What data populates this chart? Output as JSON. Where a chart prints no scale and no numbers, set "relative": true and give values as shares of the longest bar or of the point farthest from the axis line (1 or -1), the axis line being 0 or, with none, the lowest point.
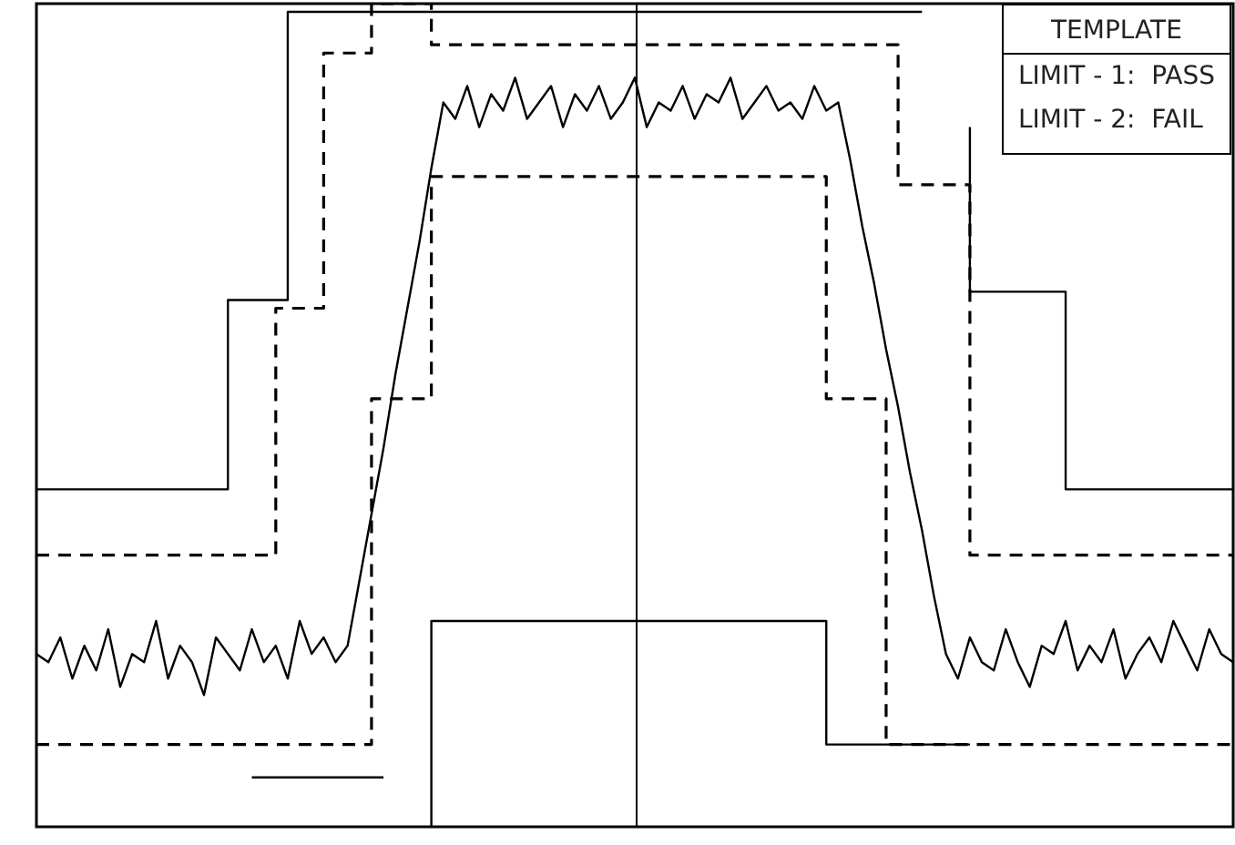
{
  "chart_data": {
    "type": "line",
    "relative": true,
    "grid": false,
    "legend": false,
    "marker": "none",
    "annotations": [
      "TEMPLATE",
      "LIMIT - 1:  PASS",
      "LIMIT - 2:  FAIL"
    ],
    "categories": [
      null,
      null,
      null,
      null,
      null,
      null,
      null,
      null,
      null,
      null,
      null,
      null,
      null,
      null,
      null,
      null,
      null,
      null,
      null,
      null,
      null,
      null,
      null,
      null,
      null,
      null,
      null,
      null,
      null,
      null,
      null,
      null,
      null,
      null,
      null,
      null,
      null,
      null,
      null,
      null,
      null,
      null,
      null,
      null,
      null,
      null,
      null,
      null,
      null,
      null,
      null,
      null,
      null,
      null,
      null,
      null,
      null,
      null,
      null,
      null,
      null,
      null,
      null,
      null,
      null,
      null,
      null,
      null,
      null,
      null,
      null,
      null,
      null,
      null,
      null,
      null,
      null,
      null,
      null,
      null,
      null,
      null,
      null,
      null,
      null,
      null,
      null,
      null,
      null,
      null,
      null,
      null,
      null,
      null,
      null,
      null,
      null,
      null,
      null,
      null,
      null
    ],
    "series": [
      {
        "type": "step",
        "color": "#000000",
        "line_style": "solid",
        "values": [
          0.41,
          0.41,
          0.41,
          0.41,
          0.41,
          0.41,
          0.41,
          0.41,
          0.41,
          0.41,
          0.41,
          0.41,
          0.41,
          0.41,
          0.41,
          0.41,
          0.41,
          0.64,
          0.64,
          0.64,
          0.64,
          0.64,
          0.99,
          0.99,
          0.99,
          0.99,
          0.99,
          0.99,
          0.99,
          0.99,
          0.99,
          0.99,
          0.99,
          0.99,
          0.99,
          0.99,
          0.99,
          0.99,
          0.99,
          0.99,
          0.99,
          0.99,
          0.99,
          0.99,
          0.99,
          0.99,
          0.99,
          0.99,
          0.99,
          0.99,
          0.99,
          0.99,
          0.99,
          0.99,
          0.99,
          0.99,
          0.99,
          0.99,
          0.99,
          0.99,
          0.99,
          0.99,
          0.99,
          0.99,
          0.99,
          0.99,
          0.99,
          0.99,
          0.99,
          0.99,
          0.99,
          0.99,
          0.99,
          0.99,
          0.99,
          null,
          null,
          null,
          0.85,
          0.65,
          0.65,
          0.65,
          0.65,
          0.65,
          0.65,
          0.65,
          0.65,
          0.41,
          0.41,
          0.41,
          0.41,
          0.41,
          0.41,
          0.41,
          0.41,
          0.41,
          0.41,
          0.41,
          0.41,
          0.41,
          0.41
        ]
      },
      {
        "type": "step",
        "color": "#000000",
        "line_style": "solid",
        "values": [
          null,
          null,
          null,
          null,
          null,
          null,
          null,
          null,
          null,
          null,
          null,
          null,
          null,
          null,
          null,
          null,
          null,
          null,
          0.06,
          0.06,
          0.06,
          0.06,
          0.06,
          0.06,
          0.06,
          0.06,
          0.06,
          0.06,
          0.06,
          0.06,
          null,
          null,
          null,
          0,
          0.25,
          0.25,
          0.25,
          0.25,
          0.25,
          0.25,
          0.25,
          0.25,
          0.25,
          0.25,
          0.25,
          0.25,
          0.25,
          0.25,
          0.25,
          0.25,
          0.25,
          0.25,
          0.25,
          0.25,
          0.25,
          0.25,
          0.25,
          0.25,
          0.25,
          0.25,
          0.25,
          0.25,
          0.25,
          0.25,
          0.25,
          0.25,
          0.25,
          0.1,
          0.1,
          0.1,
          0.1,
          0.1,
          0.1,
          0.1,
          0.1,
          0.1,
          0.1,
          0.1,
          0.1,
          null,
          null,
          null,
          null,
          null,
          null,
          null,
          null,
          null,
          null,
          null,
          null,
          null,
          null,
          null,
          null,
          null,
          null,
          null,
          null,
          null,
          null
        ]
      },
      {
        "type": "step",
        "color": "#000000",
        "line_style": "dashed",
        "values": [
          0.33,
          0.33,
          0.33,
          0.33,
          0.33,
          0.33,
          0.33,
          0.33,
          0.33,
          0.33,
          0.33,
          0.33,
          0.33,
          0.33,
          0.33,
          0.33,
          0.33,
          0.33,
          0.33,
          0.33,
          0.33,
          0.63,
          0.63,
          0.63,
          0.63,
          0.94,
          0.94,
          0.94,
          0.94,
          1,
          1,
          1,
          1,
          1,
          0.95,
          0.95,
          0.95,
          0.95,
          0.95,
          0.95,
          0.95,
          0.95,
          0.95,
          0.95,
          0.95,
          0.95,
          0.95,
          0.95,
          0.95,
          0.95,
          0.95,
          0.95,
          0.95,
          0.95,
          0.95,
          0.95,
          0.95,
          0.95,
          0.95,
          0.95,
          0.95,
          0.95,
          0.95,
          0.95,
          0.95,
          0.95,
          0.95,
          0.95,
          0.95,
          0.95,
          0.95,
          0.95,
          0.95,
          0.78,
          0.78,
          0.78,
          0.78,
          0.78,
          0.78,
          0.33,
          0.33,
          0.33,
          0.33,
          0.33,
          0.33,
          0.33,
          0.33,
          0.33,
          0.33,
          0.33,
          0.33,
          0.33,
          0.33,
          0.33,
          0.33,
          0.33,
          0.33,
          0.33,
          0.33,
          0.33,
          0.33
        ]
      },
      {
        "type": "step",
        "color": "#000000",
        "line_style": "dashed",
        "values": [
          0.1,
          0.1,
          0.1,
          0.1,
          0.1,
          0.1,
          0.1,
          0.1,
          0.1,
          0.1,
          0.1,
          0.1,
          0.1,
          0.1,
          0.1,
          0.1,
          0.1,
          0.1,
          0.1,
          0.1,
          0.1,
          0.1,
          0.1,
          0.1,
          0.1,
          0.1,
          0.1,
          0.1,
          0.1,
          0.52,
          0.52,
          0.52,
          0.52,
          0.52,
          0.79,
          0.79,
          0.79,
          0.79,
          0.79,
          0.79,
          0.79,
          0.79,
          0.79,
          0.79,
          0.79,
          0.79,
          0.79,
          0.79,
          0.79,
          0.79,
          0.79,
          0.79,
          0.79,
          0.79,
          0.79,
          0.79,
          0.79,
          0.79,
          0.79,
          0.79,
          0.79,
          0.79,
          0.79,
          0.79,
          0.79,
          0.79,
          0.79,
          0.52,
          0.52,
          0.52,
          0.52,
          0.52,
          0.1,
          0.1,
          0.1,
          0.1,
          0.1,
          0.1,
          0.1,
          0.1,
          0.1,
          0.1,
          0.1,
          0.1,
          0.1,
          0.1,
          0.1,
          0.1,
          0.1,
          0.1,
          0.1,
          0.1,
          0.1,
          0.1,
          0.1,
          0.1,
          0.1,
          0.1,
          0.1,
          0.1,
          0.1
        ]
      },
      {
        "color": "#000000",
        "line_style": "solid",
        "values": [
          0.21,
          0.2,
          0.23,
          0.18,
          0.22,
          0.19,
          0.24,
          0.17,
          0.21,
          0.2,
          0.25,
          0.18,
          0.22,
          0.2,
          0.16,
          0.23,
          0.21,
          0.19,
          0.24,
          0.2,
          0.22,
          0.18,
          0.25,
          0.21,
          0.23,
          0.2,
          0.22,
          0.3,
          0.38,
          0.46,
          0.55,
          0.63,
          0.71,
          0.8,
          0.88,
          0.86,
          0.9,
          0.85,
          0.89,
          0.87,
          0.91,
          0.86,
          0.88,
          0.9,
          0.85,
          0.89,
          0.87,
          0.9,
          0.86,
          0.88,
          0.91,
          0.85,
          0.88,
          0.87,
          0.9,
          0.86,
          0.89,
          0.88,
          0.91,
          0.86,
          0.88,
          0.9,
          0.87,
          0.88,
          0.86,
          0.9,
          0.87,
          0.88,
          0.81,
          0.73,
          0.66,
          0.58,
          0.51,
          0.43,
          0.36,
          0.28,
          0.21,
          0.18,
          0.23,
          0.2,
          0.19,
          0.24,
          0.2,
          0.17,
          0.22,
          0.21,
          0.25,
          0.19,
          0.22,
          0.2,
          0.24,
          0.18,
          0.21,
          0.23,
          0.2,
          0.25,
          0.22,
          0.19,
          0.24,
          0.21,
          0.2
        ]
      }
    ]
  }
}
